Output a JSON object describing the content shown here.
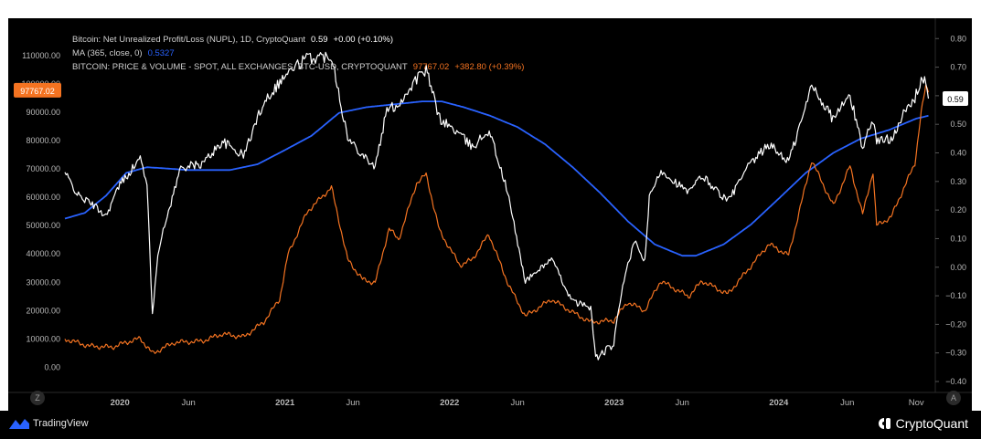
{
  "legend": {
    "line1_title": "Bitcoin: Net Unrealized Profit/Loss (NUPL), 1D, CryptoQuant",
    "line1_value": "0.59",
    "line1_change": "+0.00 (+0.10%)",
    "line2_title": "MA (365, close, 0)",
    "line2_value": "0.5327",
    "line3_title": "BITCOIN: PRICE & VOLUME - SPOT, ALL EXCHANGES, BTC-USD, CRYPTOQUANT",
    "line3_value": "97767.02",
    "line3_change": "+382.80 (+0.39%)"
  },
  "footer": {
    "tradingview_label": "TradingView",
    "cryptoquant_label": "CryptoQuant"
  },
  "buttons": {
    "z": "Z",
    "a": "A"
  },
  "chart_data": {
    "type": "line",
    "x_range": [
      "2019-09-01",
      "2024-12-01"
    ],
    "x_tick_labels": [
      "2020",
      "Jun",
      "2021",
      "Jun",
      "2022",
      "Jun",
      "2023",
      "Jun",
      "2024",
      "Jun",
      "Nov"
    ],
    "x_tick_dates": [
      "2020-01-01",
      "2020-06-01",
      "2021-01-01",
      "2021-06-01",
      "2022-01-01",
      "2022-06-01",
      "2023-01-01",
      "2023-06-01",
      "2024-01-01",
      "2024-06-01",
      "2024-11-01"
    ],
    "y_left": {
      "label": "",
      "range": [
        -5000,
        118000
      ],
      "ticks": [
        0,
        10000,
        20000,
        30000,
        40000,
        50000,
        60000,
        70000,
        80000,
        90000,
        100000,
        110000
      ],
      "tick_labels": [
        "0.00",
        "10000.00",
        "20000.00",
        "30000.00",
        "40000.00",
        "50000.00",
        "60000.00",
        "70000.00",
        "80000.00",
        "90000.00",
        "100000.00",
        "110000.00"
      ]
    },
    "y_right": {
      "label": "",
      "range": [
        -0.4,
        0.82
      ],
      "ticks": [
        -0.4,
        -0.3,
        -0.2,
        -0.1,
        0.0,
        0.1,
        0.2,
        0.3,
        0.4,
        0.5,
        0.6,
        0.7,
        0.8
      ],
      "tick_labels": [
        "−0.40",
        "−0.30",
        "−0.20",
        "−0.10",
        "0.00",
        "0.10",
        "0.20",
        "0.30",
        "0.40",
        "0.50",
        "0.60",
        "0.70",
        "0.80"
      ]
    },
    "last_values": {
      "price": "97767.02",
      "nupl": "0.59"
    },
    "series": [
      {
        "name": "Bitcoin: Net Unrealized Profit/Loss (NUPL), 1D, CryptoQuant",
        "axis": "right",
        "color": "#ffffff",
        "points": [
          [
            "2019-09-01",
            0.33
          ],
          [
            "2019-10-01",
            0.25
          ],
          [
            "2019-11-01",
            0.22
          ],
          [
            "2019-12-01",
            0.18
          ],
          [
            "2020-01-01",
            0.29
          ],
          [
            "2020-02-15",
            0.38
          ],
          [
            "2020-03-01",
            0.3
          ],
          [
            "2020-03-13",
            -0.17
          ],
          [
            "2020-03-25",
            0.05
          ],
          [
            "2020-04-15",
            0.18
          ],
          [
            "2020-05-15",
            0.35
          ],
          [
            "2020-07-01",
            0.36
          ],
          [
            "2020-08-15",
            0.44
          ],
          [
            "2020-10-01",
            0.39
          ],
          [
            "2020-11-15",
            0.58
          ],
          [
            "2021-01-01",
            0.67
          ],
          [
            "2021-02-15",
            0.73
          ],
          [
            "2021-04-15",
            0.74
          ],
          [
            "2021-05-20",
            0.45
          ],
          [
            "2021-06-20",
            0.4
          ],
          [
            "2021-07-20",
            0.35
          ],
          [
            "2021-08-15",
            0.55
          ],
          [
            "2021-09-10",
            0.57
          ],
          [
            "2021-10-20",
            0.66
          ],
          [
            "2021-11-10",
            0.69
          ],
          [
            "2021-12-10",
            0.52
          ],
          [
            "2022-01-20",
            0.47
          ],
          [
            "2022-02-20",
            0.42
          ],
          [
            "2022-03-30",
            0.48
          ],
          [
            "2022-05-10",
            0.26
          ],
          [
            "2022-06-18",
            -0.05
          ],
          [
            "2022-08-15",
            0.03
          ],
          [
            "2022-09-30",
            -0.12
          ],
          [
            "2022-11-10",
            -0.14
          ],
          [
            "2022-11-21",
            -0.32
          ],
          [
            "2022-12-31",
            -0.27
          ],
          [
            "2023-01-20",
            -0.06
          ],
          [
            "2023-02-15",
            0.09
          ],
          [
            "2023-03-10",
            0.02
          ],
          [
            "2023-03-20",
            0.24
          ],
          [
            "2023-04-15",
            0.34
          ],
          [
            "2023-06-15",
            0.26
          ],
          [
            "2023-07-15",
            0.32
          ],
          [
            "2023-09-10",
            0.23
          ],
          [
            "2023-10-25",
            0.35
          ],
          [
            "2023-12-10",
            0.43
          ],
          [
            "2024-01-23",
            0.37
          ],
          [
            "2024-02-28",
            0.55
          ],
          [
            "2024-03-14",
            0.64
          ],
          [
            "2024-04-30",
            0.52
          ],
          [
            "2024-06-07",
            0.6
          ],
          [
            "2024-07-05",
            0.42
          ],
          [
            "2024-07-28",
            0.52
          ],
          [
            "2024-08-05",
            0.44
          ],
          [
            "2024-09-06",
            0.45
          ],
          [
            "2024-09-28",
            0.52
          ],
          [
            "2024-10-29",
            0.59
          ],
          [
            "2024-11-12",
            0.66
          ],
          [
            "2024-11-22",
            0.65
          ],
          [
            "2024-11-28",
            0.59
          ]
        ]
      },
      {
        "name": "MA (365, close, 0)",
        "axis": "right",
        "color": "#2962ff",
        "points": [
          [
            "2019-09-01",
            0.17
          ],
          [
            "2019-10-15",
            0.19
          ],
          [
            "2019-12-01",
            0.25
          ],
          [
            "2020-01-15",
            0.33
          ],
          [
            "2020-03-01",
            0.35
          ],
          [
            "2020-06-01",
            0.34
          ],
          [
            "2020-09-01",
            0.34
          ],
          [
            "2020-11-01",
            0.36
          ],
          [
            "2021-01-01",
            0.41
          ],
          [
            "2021-03-01",
            0.46
          ],
          [
            "2021-05-01",
            0.54
          ],
          [
            "2021-07-01",
            0.56
          ],
          [
            "2021-09-01",
            0.57
          ],
          [
            "2021-11-01",
            0.58
          ],
          [
            "2021-12-15",
            0.58
          ],
          [
            "2022-02-01",
            0.56
          ],
          [
            "2022-04-01",
            0.53
          ],
          [
            "2022-06-01",
            0.49
          ],
          [
            "2022-08-01",
            0.43
          ],
          [
            "2022-10-01",
            0.35
          ],
          [
            "2022-12-01",
            0.26
          ],
          [
            "2023-02-01",
            0.16
          ],
          [
            "2023-04-01",
            0.08
          ],
          [
            "2023-06-01",
            0.04
          ],
          [
            "2023-07-01",
            0.04
          ],
          [
            "2023-09-01",
            0.08
          ],
          [
            "2023-11-01",
            0.15
          ],
          [
            "2024-01-01",
            0.24
          ],
          [
            "2024-03-01",
            0.33
          ],
          [
            "2024-05-01",
            0.4
          ],
          [
            "2024-07-01",
            0.45
          ],
          [
            "2024-09-01",
            0.48
          ],
          [
            "2024-11-01",
            0.52
          ],
          [
            "2024-11-28",
            0.53
          ]
        ]
      },
      {
        "name": "BITCOIN: PRICE & VOLUME - SPOT, ALL EXCHANGES, BTC-USD, CRYPTOQUANT",
        "axis": "left",
        "color": "#f47321",
        "points": [
          [
            "2019-09-01",
            10000
          ],
          [
            "2019-10-25",
            7500
          ],
          [
            "2019-12-15",
            7100
          ],
          [
            "2020-01-15",
            8800
          ],
          [
            "2020-02-15",
            10200
          ],
          [
            "2020-03-13",
            4900
          ],
          [
            "2020-05-01",
            8800
          ],
          [
            "2020-07-01",
            9200
          ],
          [
            "2020-08-15",
            11800
          ],
          [
            "2020-10-01",
            10700
          ],
          [
            "2020-11-15",
            16000
          ],
          [
            "2020-12-20",
            24000
          ],
          [
            "2021-01-08",
            40000
          ],
          [
            "2021-02-20",
            55000
          ],
          [
            "2021-04-14",
            63500
          ],
          [
            "2021-05-20",
            38000
          ],
          [
            "2021-06-22",
            31000
          ],
          [
            "2021-07-20",
            29800
          ],
          [
            "2021-08-20",
            49000
          ],
          [
            "2021-09-10",
            45000
          ],
          [
            "2021-10-20",
            65000
          ],
          [
            "2021-11-10",
            68000
          ],
          [
            "2021-12-10",
            48000
          ],
          [
            "2022-01-24",
            36000
          ],
          [
            "2022-02-20",
            38000
          ],
          [
            "2022-03-29",
            47000
          ],
          [
            "2022-05-12",
            29000
          ],
          [
            "2022-06-18",
            18000
          ],
          [
            "2022-08-15",
            24000
          ],
          [
            "2022-09-30",
            19500
          ],
          [
            "2022-11-09",
            16000
          ],
          [
            "2022-12-31",
            16500
          ],
          [
            "2023-01-31",
            23000
          ],
          [
            "2023-03-10",
            20000
          ],
          [
            "2023-04-14",
            30500
          ],
          [
            "2023-06-15",
            25000
          ],
          [
            "2023-07-15",
            30500
          ],
          [
            "2023-09-10",
            25800
          ],
          [
            "2023-10-25",
            34500
          ],
          [
            "2023-12-10",
            43500
          ],
          [
            "2024-01-23",
            39500
          ],
          [
            "2024-03-14",
            73000
          ],
          [
            "2024-05-01",
            57000
          ],
          [
            "2024-06-07",
            71000
          ],
          [
            "2024-07-05",
            54000
          ],
          [
            "2024-07-28",
            69000
          ],
          [
            "2024-08-05",
            50000
          ],
          [
            "2024-09-06",
            53000
          ],
          [
            "2024-10-29",
            72000
          ],
          [
            "2024-11-12",
            90000
          ],
          [
            "2024-11-22",
            99000
          ],
          [
            "2024-11-28",
            97767
          ]
        ]
      }
    ]
  }
}
